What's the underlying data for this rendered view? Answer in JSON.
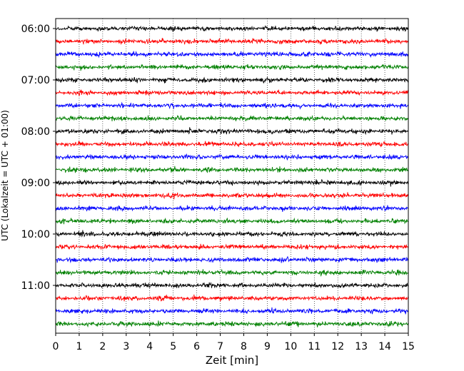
{
  "chart_data": {
    "type": "line",
    "title": "",
    "xlabel": "Zeit  [min]",
    "ylabel": "UTC (Lokalzeit = UTC + 01:00)",
    "xlim": [
      0,
      15
    ],
    "x_ticks": [
      0,
      1,
      2,
      3,
      4,
      5,
      6,
      7,
      8,
      9,
      10,
      11,
      12,
      13,
      14,
      15
    ],
    "y_tick_labels": [
      "06:00",
      "07:00",
      "08:00",
      "09:00",
      "10:00",
      "11:00"
    ],
    "grid": "vertical dotted lines at each minute",
    "trace_interval_min": 15,
    "first_trace": "06:00",
    "last_trace": "11:45",
    "trace_count": 24,
    "trace_colors": [
      "#000000",
      "#ff0000",
      "#0000ff",
      "#008000"
    ],
    "signal": "seismic noise, no distinct events"
  }
}
